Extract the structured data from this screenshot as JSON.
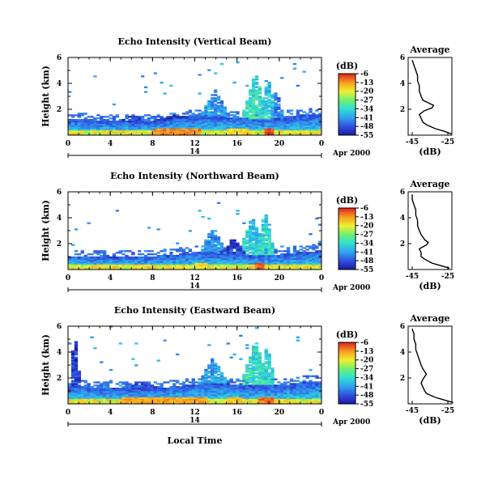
{
  "chart_data": [
    {
      "type": "heatmap",
      "title": "Echo Intensity (Vertical Beam)",
      "ylabel": "Height (km)",
      "ylim": [
        0,
        6
      ],
      "yticks": [
        "2",
        "4",
        "6"
      ],
      "xlim": [
        0,
        24
      ],
      "xticks": [
        "0",
        "4",
        "8",
        "12",
        "16",
        "20",
        "0"
      ],
      "date_day": "14",
      "date_label": "Apr 2000",
      "colorbar": {
        "unit": "(dB)",
        "ticks": [
          "-6",
          "-13",
          "-20",
          "-27",
          "-34",
          "-41",
          "-48",
          "-55"
        ],
        "range": [
          -55,
          -6
        ]
      },
      "average": {
        "title": "Average",
        "xlabel": "(dB)",
        "xticks": [
          "-45",
          "-25"
        ],
        "yticks": [
          "2",
          "4",
          "6"
        ],
        "heights": [
          0.1,
          0.3,
          0.5,
          0.8,
          1.0,
          1.3,
          1.6,
          1.9,
          2.1,
          2.3,
          2.5,
          2.7,
          3.0,
          3.4,
          3.8,
          4.2,
          4.6,
          5.0,
          5.4,
          5.8
        ],
        "values": [
          -23,
          -27,
          -32,
          -37,
          -39,
          -40,
          -41,
          -38,
          -34,
          -33,
          -36,
          -39,
          -40,
          -41,
          -41,
          -42,
          -42,
          -43,
          -44,
          -45
        ]
      },
      "fields": {
        "base": [
          [
            0,
            1.2
          ],
          [
            3,
            1.1
          ],
          [
            6,
            1.0
          ],
          [
            9,
            1.1
          ],
          [
            10,
            1.3
          ],
          [
            12,
            1.4
          ],
          [
            13,
            1.5
          ],
          [
            14,
            1.4
          ],
          [
            16,
            1.3
          ],
          [
            18,
            1.2
          ],
          [
            20,
            1.3
          ],
          [
            22,
            1.5
          ],
          [
            24,
            1.6
          ]
        ],
        "towers": [
          {
            "center": 13.8,
            "width": 1.3,
            "top": 3.5,
            "intensity": -38
          },
          {
            "center": 17.6,
            "width": 1.2,
            "top": 4.8,
            "intensity": -30
          },
          {
            "center": 18.8,
            "width": 0.9,
            "top": 4.4,
            "intensity": -33
          },
          {
            "center": 19.6,
            "width": 0.6,
            "top": 3.6,
            "intensity": -40
          },
          {
            "center": 6.0,
            "width": 1.2,
            "top": 1.6,
            "intensity": -45
          },
          {
            "center": 10.0,
            "width": 2.0,
            "top": 1.5,
            "intensity": -46
          }
        ],
        "hot": [
          [
            8,
            12.5,
            -12
          ],
          [
            15,
            17,
            -18
          ],
          [
            18.5,
            19.5,
            -8
          ]
        ]
      }
    },
    {
      "type": "heatmap",
      "title": "Echo Intensity (Northward Beam)",
      "ylabel": "Height (km)",
      "ylim": [
        0,
        6
      ],
      "yticks": [
        "2",
        "4",
        "6"
      ],
      "xlim": [
        0,
        24
      ],
      "xticks": [
        "0",
        "4",
        "8",
        "12",
        "16",
        "20",
        "0"
      ],
      "date_day": "14",
      "date_label": "Apr 2000",
      "colorbar": {
        "unit": "(dB)",
        "ticks": [
          "-6",
          "-13",
          "-20",
          "-27",
          "-34",
          "-41",
          "-48",
          "-55"
        ],
        "range": [
          -55,
          -6
        ]
      },
      "average": {
        "title": "Average",
        "xlabel": "(dB)",
        "xticks": [
          "-45",
          "-25"
        ],
        "yticks": [
          "2",
          "4",
          "6"
        ],
        "heights": [
          0.1,
          0.3,
          0.5,
          0.8,
          1.0,
          1.3,
          1.6,
          1.9,
          2.1,
          2.3,
          2.5,
          2.7,
          3.0,
          3.4,
          3.8,
          4.2,
          4.6,
          5.0,
          5.4,
          5.8
        ],
        "values": [
          -24,
          -29,
          -34,
          -38,
          -40,
          -40,
          -41,
          -37,
          -36,
          -38,
          -39,
          -40,
          -41,
          -42,
          -42,
          -43,
          -43,
          -44,
          -45,
          -45
        ]
      },
      "fields": {
        "base": [
          [
            0,
            1.0
          ],
          [
            3,
            0.9
          ],
          [
            6,
            0.9
          ],
          [
            9,
            1.0
          ],
          [
            11,
            1.2
          ],
          [
            13,
            1.3
          ],
          [
            15,
            1.2
          ],
          [
            17,
            1.1
          ],
          [
            20,
            1.1
          ],
          [
            22,
            1.3
          ],
          [
            24,
            1.4
          ]
        ],
        "towers": [
          {
            "center": 13.6,
            "width": 1.2,
            "top": 3.3,
            "intensity": -38
          },
          {
            "center": 17.3,
            "width": 1.2,
            "top": 4.2,
            "intensity": -33
          },
          {
            "center": 18.5,
            "width": 0.9,
            "top": 4.5,
            "intensity": -32
          },
          {
            "center": 15.5,
            "width": 1.2,
            "top": 2.4,
            "intensity": -46
          }
        ],
        "hot": [
          [
            12,
            13,
            -18
          ],
          [
            17.5,
            18.5,
            -10
          ]
        ]
      }
    },
    {
      "type": "heatmap",
      "title": "Echo Intensity (Eastward Beam)",
      "ylabel": "Height (km)",
      "ylim": [
        0,
        6
      ],
      "yticks": [
        "2",
        "4",
        "6"
      ],
      "xlim": [
        0,
        24
      ],
      "xticks": [
        "0",
        "4",
        "8",
        "12",
        "16",
        "20",
        "0"
      ],
      "date_day": "14",
      "date_label": "Apr 2000",
      "xlabel": "Local Time",
      "colorbar": {
        "unit": "(dB)",
        "ticks": [
          "-6",
          "-13",
          "-20",
          "-27",
          "-34",
          "-41",
          "-48",
          "-55"
        ],
        "range": [
          -55,
          -6
        ]
      },
      "average": {
        "title": "Average",
        "xlabel": "(dB)",
        "xticks": [
          "-45",
          "-25"
        ],
        "yticks": [
          "2",
          "4",
          "6"
        ],
        "heights": [
          0.1,
          0.3,
          0.5,
          0.8,
          1.0,
          1.3,
          1.6,
          1.9,
          2.1,
          2.3,
          2.5,
          2.7,
          3.0,
          3.4,
          3.8,
          4.2,
          4.6,
          5.0,
          5.4,
          5.8
        ],
        "values": [
          -22,
          -27,
          -32,
          -37,
          -38,
          -39,
          -40,
          -39,
          -38,
          -37,
          -38,
          -39,
          -40,
          -41,
          -42,
          -43,
          -43,
          -44,
          -44,
          -45
        ]
      },
      "fields": {
        "base": [
          [
            0,
            1.3
          ],
          [
            3,
            1.2
          ],
          [
            6,
            1.1
          ],
          [
            9,
            1.2
          ],
          [
            11,
            1.4
          ],
          [
            13,
            1.5
          ],
          [
            15,
            1.5
          ],
          [
            17,
            1.4
          ],
          [
            20,
            1.4
          ],
          [
            22,
            1.6
          ],
          [
            24,
            1.7
          ]
        ],
        "towers": [
          {
            "center": 13.6,
            "width": 1.3,
            "top": 3.6,
            "intensity": -37
          },
          {
            "center": 17.6,
            "width": 1.3,
            "top": 4.9,
            "intensity": -30
          },
          {
            "center": 18.7,
            "width": 0.8,
            "top": 4.5,
            "intensity": -32
          },
          {
            "center": 0.5,
            "width": 0.5,
            "top": 5.6,
            "intensity": -47
          },
          {
            "center": 6.5,
            "width": 2.0,
            "top": 1.7,
            "intensity": -44
          }
        ],
        "hot": [
          [
            5,
            13,
            -14
          ],
          [
            15,
            16.5,
            -16
          ],
          [
            18,
            19.5,
            -10
          ]
        ]
      }
    }
  ]
}
